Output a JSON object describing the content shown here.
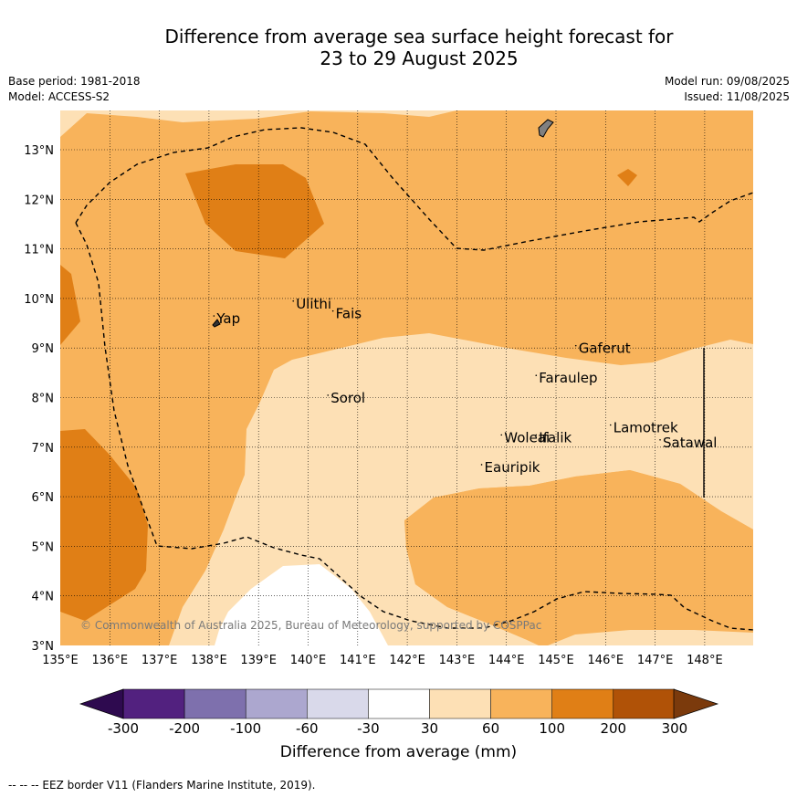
{
  "title_line1": "Difference from average sea surface height forecast for",
  "title_line2": "23 to 29 August 2025",
  "base_period": "Base period: 1981-2018",
  "model": "Model: ACCESS-S2",
  "model_run": "Model run: 09/08/2025",
  "issued": "Issued: 11/08/2025",
  "copyright": "© Commonwealth of Australia 2025, Bureau of Meteorology, supported by COSPPac",
  "eez_note": "--  --  -- EEZ border V11 (Flanders Marine Institute, 2019).",
  "map": {
    "lon_range": [
      135,
      149
    ],
    "lat_range": [
      3,
      13.8
    ],
    "lon_labels": [
      "135°E",
      "136°E",
      "137°E",
      "138°E",
      "139°E",
      "140°E",
      "141°E",
      "142°E",
      "143°E",
      "144°E",
      "145°E",
      "146°E",
      "147°E",
      "148°E"
    ],
    "lat_labels": [
      "3°N",
      "4°N",
      "5°N",
      "6°N",
      "7°N",
      "8°N",
      "9°N",
      "10°N",
      "11°N",
      "12°N",
      "13°N"
    ],
    "places": [
      {
        "name": "Yap",
        "lon": 138.1,
        "lat": 9.5
      },
      {
        "name": "Ulithi",
        "lon": 139.7,
        "lat": 9.8
      },
      {
        "name": "Fais",
        "lon": 140.5,
        "lat": 9.6
      },
      {
        "name": "Sorol",
        "lon": 140.4,
        "lat": 7.9
      },
      {
        "name": "Gaferut",
        "lon": 145.4,
        "lat": 8.9
      },
      {
        "name": "Faraulep",
        "lon": 144.6,
        "lat": 8.3
      },
      {
        "name": "Woleai",
        "lon": 143.9,
        "lat": 7.1
      },
      {
        "name": "Ifalik",
        "lon": 144.6,
        "lat": 7.1
      },
      {
        "name": "Lamotrek",
        "lon": 146.1,
        "lat": 7.3
      },
      {
        "name": "Satawal",
        "lon": 147.1,
        "lat": 7.0
      },
      {
        "name": "Eauripik",
        "lon": 143.5,
        "lat": 6.5
      }
    ]
  },
  "colorbar": {
    "label": "Difference from average (mm)",
    "ticks": [
      "-300",
      "-200",
      "-100",
      "-60",
      "-30",
      "30",
      "60",
      "100",
      "200",
      "300"
    ],
    "colors": [
      "#52217f",
      "#7e70ad",
      "#aca7cf",
      "#d9d9ea",
      "#ffffff",
      "#fde0b5",
      "#f8b35b",
      "#e07f16",
      "#b05207"
    ],
    "under_color": "#2e0a4f",
    "over_color": "#7b3a0c"
  },
  "colors": {
    "band_30_60": "#fde0b5",
    "band_60_100": "#f8b35b",
    "band_100_200": "#e07f16",
    "land": "#808080"
  }
}
